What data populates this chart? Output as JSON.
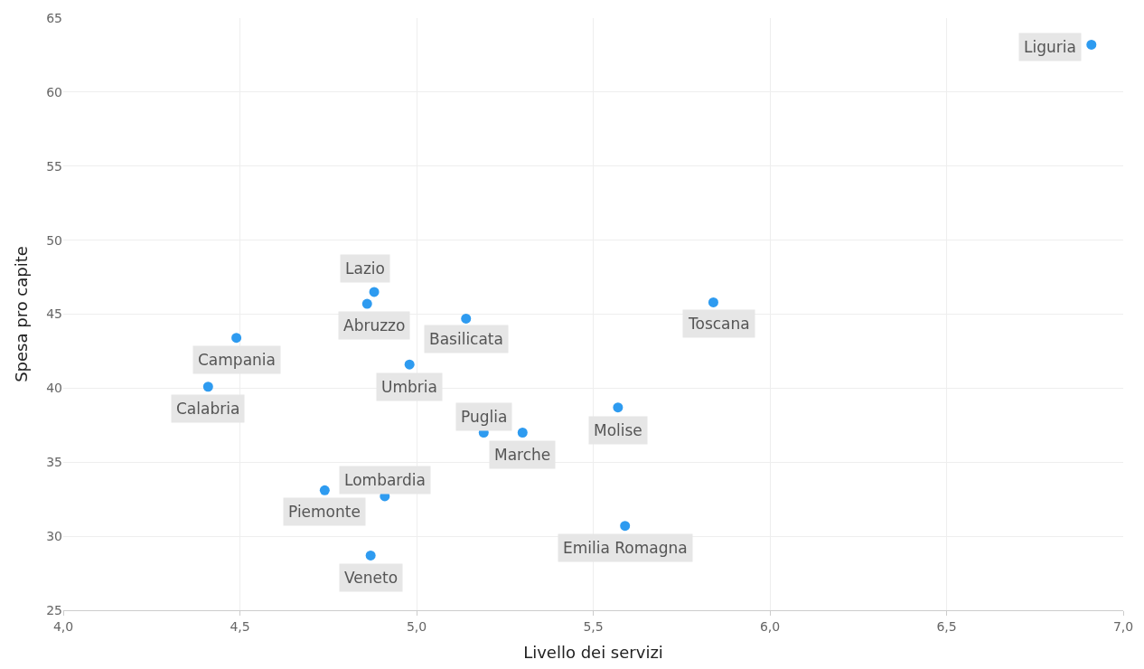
{
  "chart_data": {
    "type": "scatter",
    "xlabel": "Livello dei servizi",
    "ylabel": "Spesa pro capite",
    "x": [
      6.91,
      5.84,
      4.88,
      4.86,
      5.14,
      4.49,
      4.98,
      4.41,
      5.57,
      5.19,
      5.3,
      4.74,
      4.91,
      5.59,
      4.87
    ],
    "values": [
      63.2,
      45.8,
      46.5,
      45.7,
      44.7,
      43.4,
      41.6,
      40.1,
      38.7,
      37.0,
      37.0,
      33.1,
      32.7,
      30.7,
      28.7
    ],
    "color": "#2e9bf0",
    "marker": "circle",
    "grid": true,
    "xlim": [
      4,
      7
    ],
    "xticks": [
      {
        "value": 4,
        "label": "4,0"
      },
      {
        "value": 4.5,
        "label": "4,5"
      },
      {
        "value": 5,
        "label": "5,0"
      },
      {
        "value": 5.5,
        "label": "5,5"
      },
      {
        "value": 6,
        "label": "6,0"
      },
      {
        "value": 6.5,
        "label": "6,5"
      },
      {
        "value": 7,
        "label": "7,0"
      }
    ],
    "ylim": [
      25,
      65
    ],
    "yticks": [
      25,
      30,
      35,
      40,
      45,
      50,
      55,
      60,
      65
    ],
    "annotations": [
      {
        "text": "Liguria",
        "x": 6.91,
        "y": 63.2
      },
      {
        "text": "Toscana",
        "x": 5.84,
        "y": 45.8
      },
      {
        "text": "Lazio",
        "x": 4.88,
        "y": 46.5
      },
      {
        "text": "Abruzzo",
        "x": 4.86,
        "y": 45.7
      },
      {
        "text": "Basilicata",
        "x": 5.14,
        "y": 44.7
      },
      {
        "text": "Campania",
        "x": 4.49,
        "y": 43.4
      },
      {
        "text": "Umbria",
        "x": 4.98,
        "y": 41.6
      },
      {
        "text": "Calabria",
        "x": 4.41,
        "y": 40.1
      },
      {
        "text": "Molise",
        "x": 5.57,
        "y": 38.7
      },
      {
        "text": "Puglia",
        "x": 5.19,
        "y": 37.0
      },
      {
        "text": "Marche",
        "x": 5.3,
        "y": 37.0
      },
      {
        "text": "Piemonte",
        "x": 4.74,
        "y": 33.1
      },
      {
        "text": "Lombardia",
        "x": 4.91,
        "y": 32.7
      },
      {
        "text": "Emilia Romagna",
        "x": 5.59,
        "y": 30.7
      },
      {
        "text": "Veneto",
        "x": 4.87,
        "y": 28.7
      }
    ]
  }
}
